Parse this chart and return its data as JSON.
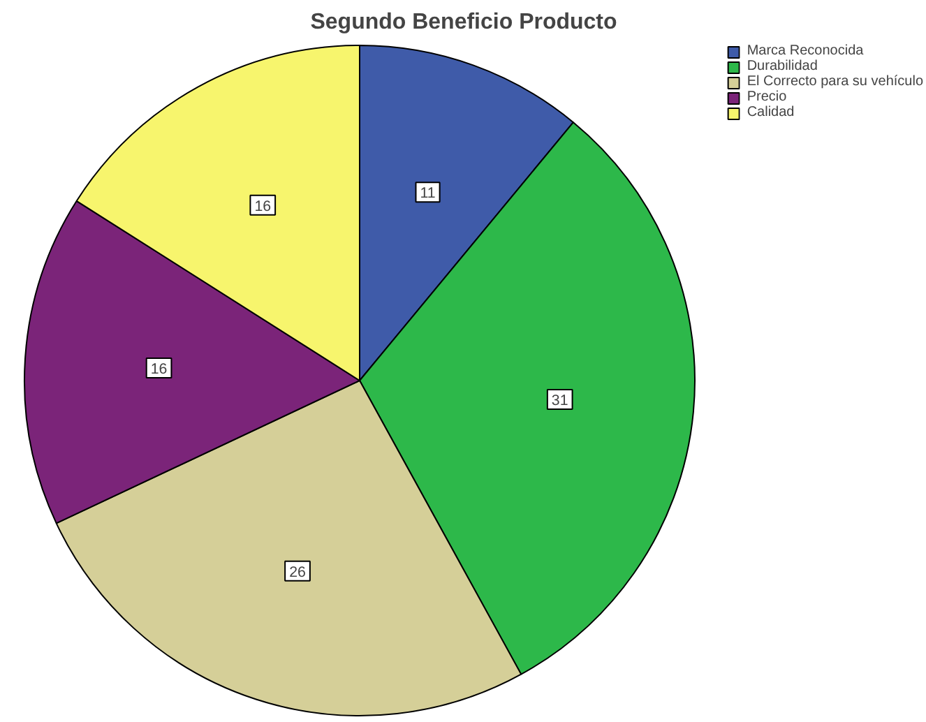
{
  "chart_data": {
    "type": "pie",
    "title": "Segundo Beneficio Producto",
    "categories": [
      "Marca Reconocida",
      "Durabilidad",
      "El Correcto para su vehículo",
      "Precio",
      "Calidad"
    ],
    "values": [
      11,
      31,
      26,
      16,
      16
    ],
    "colors": [
      "#3f5ba9",
      "#2db84a",
      "#d5cf98",
      "#7b2479",
      "#f7f56d"
    ],
    "data_labels": true,
    "legend": "top right"
  }
}
